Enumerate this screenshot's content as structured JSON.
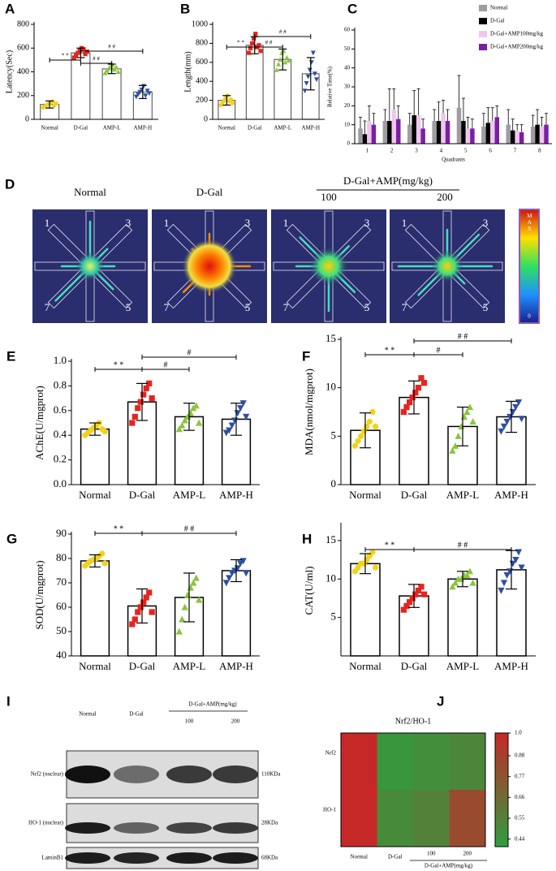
{
  "chart_data": [
    {
      "type": "bar",
      "panel": "A",
      "ylabel": "Latency(Sec)",
      "categories": [
        "Normal",
        "D-Gal",
        "AMP-L",
        "AMP-H"
      ],
      "values": [
        125,
        560,
        425,
        230
      ],
      "errors": [
        30,
        40,
        40,
        55
      ],
      "color": "#666666",
      "points": [
        [
          100,
          110,
          120,
          130,
          140,
          150,
          115,
          135
        ],
        [
          520,
          540,
          560,
          580,
          600,
          590,
          550,
          570
        ],
        [
          390,
          410,
          430,
          450,
          460,
          420,
          440,
          400
        ],
        [
          190,
          210,
          230,
          250,
          280,
          200,
          240,
          220
        ]
      ],
      "point_colors": [
        "#f2d21b",
        "#e8231e",
        "#8ac43f",
        "#2e4fa0"
      ],
      "annotations": [
        "* *",
        "# #",
        "# #"
      ],
      "ylim": [
        0,
        800
      ],
      "yticks": [
        0,
        200,
        400,
        600,
        800
      ]
    },
    {
      "type": "bar",
      "panel": "B",
      "ylabel": "Length(mm)",
      "categories": [
        "Normal",
        "D-Gal",
        "AMP-L",
        "AMP-H"
      ],
      "values": [
        200,
        780,
        630,
        480
      ],
      "errors": [
        50,
        90,
        110,
        170
      ],
      "color": "#666666",
      "points": [
        [
          150,
          180,
          200,
          220,
          250,
          190,
          210,
          170
        ],
        [
          700,
          750,
          800,
          850,
          900,
          760,
          780,
          720
        ],
        [
          520,
          580,
          630,
          700,
          720,
          600,
          650,
          620
        ],
        [
          300,
          380,
          450,
          520,
          600,
          700,
          480,
          420
        ]
      ],
      "point_colors": [
        "#f2d21b",
        "#e8231e",
        "#8ac43f",
        "#2e4fa0"
      ],
      "annotations": [
        "* *",
        "# #",
        "# #"
      ],
      "ylim": [
        0,
        1000
      ],
      "yticks": [
        0,
        200,
        400,
        600,
        800,
        1000
      ]
    },
    {
      "type": "grouped",
      "panel": "C",
      "ylabel": "Relative Time(%)",
      "xlabel": "Quadrants",
      "categories": [
        "1",
        "2",
        "3",
        "4",
        "5",
        "6",
        "7",
        "8"
      ],
      "series": [
        {
          "name": "Normal",
          "color": "#9e9ea2",
          "values": [
            8,
            12,
            10,
            12,
            19,
            9,
            10,
            9
          ],
          "errors": [
            6,
            6,
            6,
            6,
            17,
            7,
            8,
            6
          ]
        },
        {
          "name": "D-Gal",
          "color": "#000000",
          "values": [
            5,
            12,
            15,
            12,
            12,
            11,
            7,
            10
          ],
          "errors": [
            7,
            17,
            13,
            10,
            12,
            8,
            6,
            8
          ]
        },
        {
          "name": "D-Gal+AMP100mg/kg",
          "color": "#f0c6f0",
          "values": [
            12,
            18,
            15,
            16,
            8,
            12,
            7,
            9
          ],
          "errors": [
            8,
            11,
            14,
            7,
            6,
            7,
            3,
            5
          ]
        },
        {
          "name": "D-Gal+AMP200mg/kg",
          "color": "#7b1fa2",
          "values": [
            10,
            13,
            8,
            12,
            8,
            14,
            6,
            10
          ],
          "errors": [
            6,
            7,
            5,
            6,
            5,
            6,
            4,
            6
          ]
        }
      ],
      "legend": "top-right",
      "ylim": [
        0,
        60
      ],
      "yticks": [
        0,
        10,
        20,
        30,
        40,
        50,
        60
      ]
    },
    {
      "type": "bar",
      "panel": "E",
      "ylabel": "AChE(U/mgprot)",
      "categories": [
        "Normal",
        "D-Gal",
        "AMP-L",
        "AMP-H"
      ],
      "values": [
        0.45,
        0.67,
        0.55,
        0.53
      ],
      "errors": [
        0.05,
        0.15,
        0.11,
        0.13
      ],
      "color": "#000000",
      "points": [
        [
          0.4,
          0.42,
          0.44,
          0.46,
          0.48,
          0.5,
          0.45,
          0.43
        ],
        [
          0.5,
          0.55,
          0.62,
          0.67,
          0.73,
          0.78,
          0.82,
          0.7
        ],
        [
          0.45,
          0.48,
          0.52,
          0.55,
          0.58,
          0.62,
          0.64,
          0.5
        ],
        [
          0.42,
          0.44,
          0.48,
          0.52,
          0.58,
          0.62,
          0.66,
          0.55
        ]
      ],
      "point_colors": [
        "#f2d21b",
        "#e8231e",
        "#8ac43f",
        "#2e4fa0"
      ],
      "annotations": [
        "* *",
        "#",
        "#"
      ],
      "ylim": [
        0,
        1
      ],
      "yticks": [
        {
          "value": 0,
          "label": "0.0"
        },
        0.2,
        0.4,
        0.6,
        0.8,
        {
          "value": 1,
          "label": "1.0"
        }
      ]
    },
    {
      "type": "bar",
      "panel": "F",
      "ylabel": "MDA(nmol/mgprot)",
      "categories": [
        "Normal",
        "D-Gal",
        "AMP-L",
        "AMP-H"
      ],
      "values": [
        5.6,
        9.0,
        6.0,
        7.0
      ],
      "errors": [
        1.8,
        1.7,
        2.0,
        1.6
      ],
      "color": "#000000",
      "points": [
        [
          4,
          4.5,
          5,
          5.5,
          6,
          6.5,
          7.5,
          6
        ],
        [
          7.5,
          8,
          8.5,
          9,
          9.5,
          10,
          11,
          10.5
        ],
        [
          3.5,
          4,
          5,
          6,
          7,
          7.5,
          8,
          6.5
        ],
        [
          5.5,
          6,
          6.5,
          7,
          7.5,
          8,
          8.5,
          6.8
        ]
      ],
      "point_colors": [
        "#f2d21b",
        "#e8231e",
        "#8ac43f",
        "#2e4fa0"
      ],
      "annotations": [
        "* *",
        "# #",
        "#"
      ],
      "ylim": [
        0,
        15
      ],
      "yticks": [
        0,
        5,
        10,
        15
      ]
    },
    {
      "type": "bar",
      "panel": "G",
      "ylabel": "SOD(U/mgprot)",
      "categories": [
        "Normal",
        "D-Gal",
        "AMP-L",
        "AMP-H"
      ],
      "values": [
        79,
        60.5,
        64,
        75
      ],
      "errors": [
        2.5,
        7,
        10,
        4.5
      ],
      "color": "#000000",
      "points": [
        [
          77,
          78,
          79,
          79.5,
          80,
          81,
          82,
          78
        ],
        [
          53,
          55,
          58,
          60,
          62,
          64,
          66,
          58
        ],
        [
          50,
          55,
          60,
          65,
          68,
          70,
          72,
          63
        ],
        [
          70,
          72,
          74,
          75,
          76,
          78,
          79,
          74
        ]
      ],
      "point_colors": [
        "#f2d21b",
        "#e8231e",
        "#8ac43f",
        "#2e4fa0"
      ],
      "annotations": [
        "* *",
        "# #"
      ],
      "ylim": [
        40,
        90
      ],
      "yticks": [
        40,
        50,
        60,
        70,
        80,
        90
      ]
    },
    {
      "type": "bar",
      "panel": "H",
      "ylabel": "CAT(U/ml)",
      "categories": [
        "Normal",
        "D-Gal",
        "AMP-L",
        "AMP-H"
      ],
      "values": [
        12,
        7.8,
        10,
        11.2
      ],
      "errors": [
        1.3,
        1.5,
        1,
        2.5
      ],
      "color": "#000000",
      "points": [
        [
          11,
          11.5,
          12,
          12,
          12.5,
          13,
          13.5,
          11.5
        ],
        [
          6,
          6.5,
          7,
          7.5,
          8,
          8.5,
          9,
          8
        ],
        [
          9,
          9.5,
          10,
          10,
          10.5,
          10.5,
          11,
          9.5
        ],
        [
          8.5,
          9.5,
          10.5,
          11,
          12,
          12.5,
          13.5,
          11.5
        ]
      ],
      "point_colors": [
        "#f2d21b",
        "#e8231e",
        "#8ac43f",
        "#2e4fa0"
      ],
      "annotations": [
        "* *",
        "# #"
      ],
      "ylim": [
        0,
        17
      ],
      "yticks": [
        5,
        10,
        15
      ]
    },
    {
      "type": "heatmap",
      "panel": "J",
      "title": "Nrf2/HO-1",
      "rows": [
        "Nrf2",
        "HO-1"
      ],
      "categories": [
        "Normal",
        "D-Gal",
        "100",
        "200"
      ],
      "group_label": "D-Gal+AMP(mg/kg)",
      "values": [
        [
          1.0,
          0.44,
          0.48,
          0.52
        ],
        [
          1.0,
          0.5,
          0.55,
          0.82
        ]
      ],
      "colormap": [
        "#2e9e3e",
        "#c62828"
      ],
      "clim": [
        0.4,
        1.0
      ],
      "cticks": [
        0.44,
        0.55,
        0.66,
        0.77,
        0.88,
        {
          "value": 1,
          "label": "1.0"
        }
      ]
    }
  ],
  "maze_panel": {
    "panel": "D",
    "groups": [
      "Normal",
      "D-Gal"
    ],
    "group_label": "D-Gal+AMP(mg/kg)",
    "doses": [
      "100",
      "200"
    ],
    "arm_labels": [
      "1",
      "3",
      "7",
      "5"
    ],
    "scale_max": "MAX",
    "scale_min": "0"
  },
  "blot_panel": {
    "panel": "I",
    "groups": [
      "Normal",
      "D-Gal"
    ],
    "group_label": "D-Gal+AMP(mg/kg)",
    "doses": [
      "100",
      "200"
    ],
    "proteins": [
      "Nrf2 (nuclear)",
      "HO-1 (nuclear)",
      "LaminB1"
    ],
    "sizes": [
      "110KDa",
      "28KDa",
      "68KDa"
    ]
  }
}
